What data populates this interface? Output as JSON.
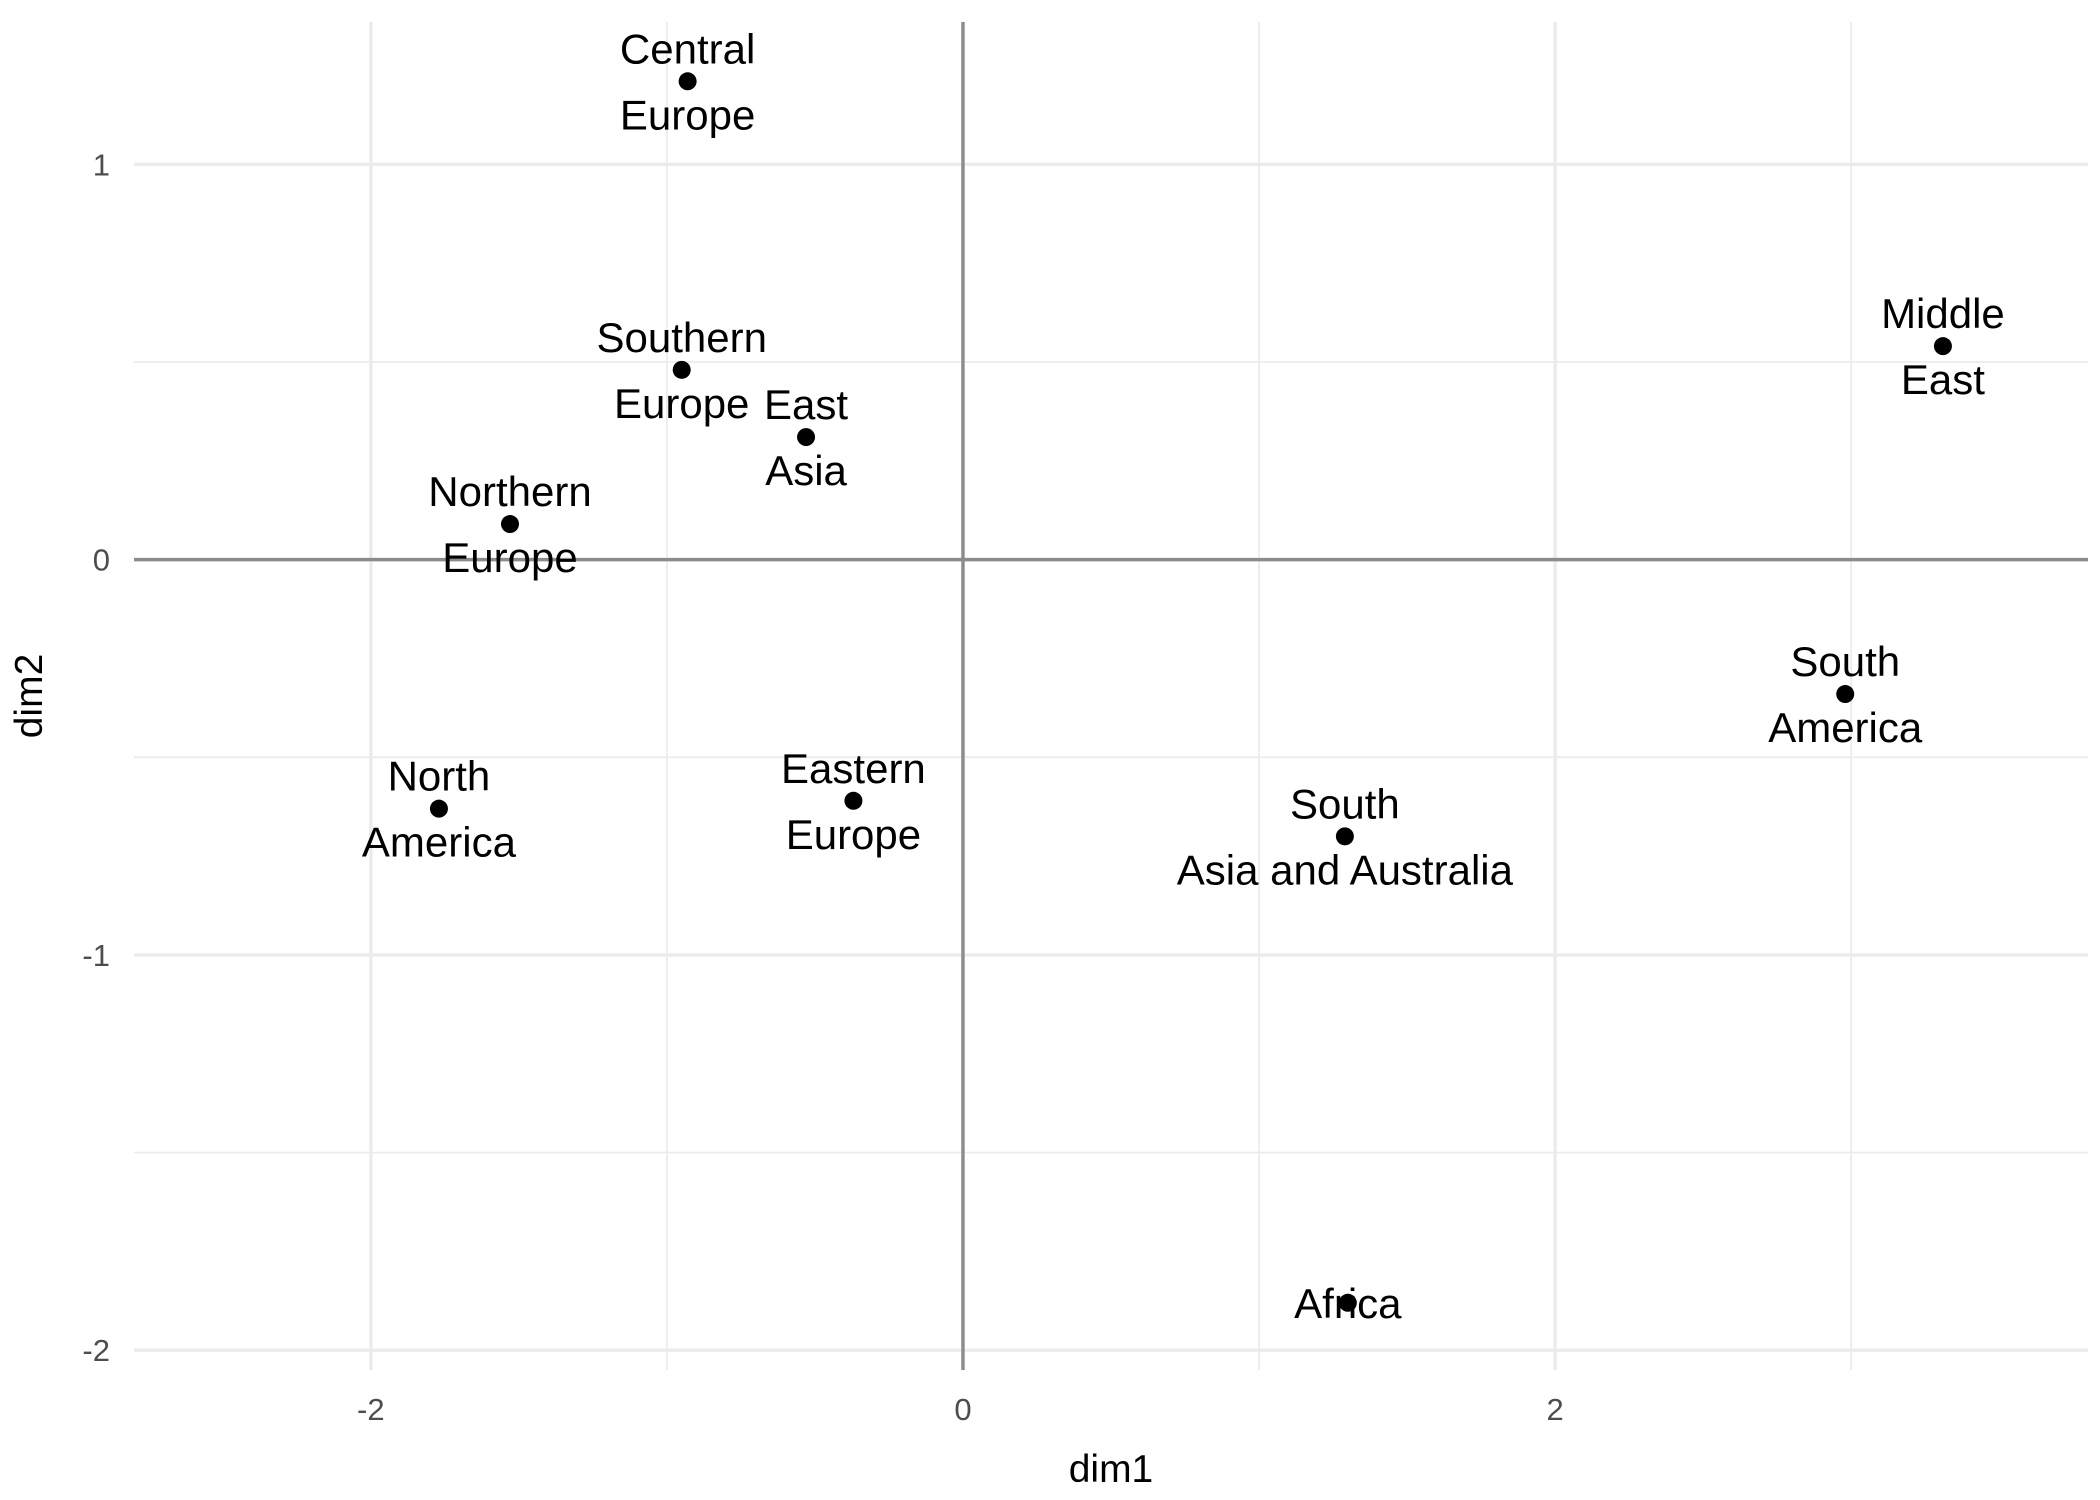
{
  "chart_data": {
    "type": "scatter",
    "xlabel": "dim1",
    "ylabel": "dim2",
    "xlim": [
      -2.8,
      3.8
    ],
    "ylim": [
      -2.05,
      1.36
    ],
    "x_ticks": [
      -2,
      0,
      2
    ],
    "y_ticks": [
      -2,
      -1,
      0,
      1
    ],
    "x_tick_labels": [
      "-2",
      "0",
      "2"
    ],
    "y_tick_labels": [
      "-2",
      "-1",
      "0",
      "1"
    ],
    "grid": true,
    "reference_lines": {
      "x": 0,
      "y": 0
    },
    "points": [
      {
        "label": "Central\nEurope",
        "x": -0.93,
        "y": 1.21
      },
      {
        "label": "Southern\nEurope",
        "x": -0.95,
        "y": 0.48
      },
      {
        "label": "East\nAsia",
        "x": -0.53,
        "y": 0.31
      },
      {
        "label": "Northern\nEurope",
        "x": -1.53,
        "y": 0.09
      },
      {
        "label": "North\nAmerica",
        "x": -1.77,
        "y": -0.63
      },
      {
        "label": "Eastern\nEurope",
        "x": -0.37,
        "y": -0.61
      },
      {
        "label": "South\nAsia and Australia",
        "x": 1.29,
        "y": -0.7
      },
      {
        "label": "Africa",
        "x": 1.3,
        "y": -1.88
      },
      {
        "label": "Middle\nEast",
        "x": 3.31,
        "y": 0.54
      },
      {
        "label": "South\nAmerica",
        "x": 2.98,
        "y": -0.34
      }
    ]
  }
}
